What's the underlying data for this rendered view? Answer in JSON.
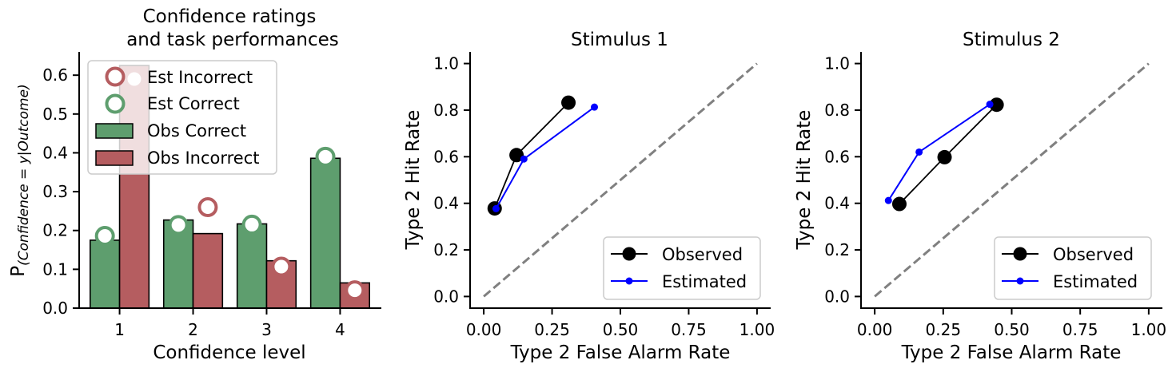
{
  "chart_data": [
    {
      "type": "bar",
      "title_lines": [
        "Confidence ratings",
        "and task performances"
      ],
      "xlabel": "Confidence level",
      "ylabel_main": "P",
      "ylabel_subscript": "(Confidence = y|Outcome)",
      "categories": [
        "1",
        "2",
        "3",
        "4"
      ],
      "xlim": [
        0.45,
        4.55
      ],
      "ylim": [
        0,
        0.66
      ],
      "yticks": [
        0.0,
        0.1,
        0.2,
        0.3,
        0.4,
        0.5,
        0.6
      ],
      "ytick_labels": [
        "0.0",
        "0.1",
        "0.2",
        "0.3",
        "0.4",
        "0.5",
        "0.6"
      ],
      "series": [
        {
          "name": "Obs Correct",
          "kind": "bar",
          "color": "#5e9e6e",
          "values": [
            0.175,
            0.227,
            0.217,
            0.386
          ]
        },
        {
          "name": "Obs Incorrect",
          "kind": "bar",
          "color": "#b55d60",
          "values": [
            0.625,
            0.192,
            0.122,
            0.065
          ]
        },
        {
          "name": "Est Correct",
          "kind": "marker",
          "color": "#5e9e6e",
          "values": [
            0.186,
            0.214,
            0.215,
            0.39
          ]
        },
        {
          "name": "Est Incorrect",
          "kind": "marker",
          "color": "#b55d60",
          "values": [
            0.59,
            0.26,
            0.107,
            0.046
          ]
        }
      ],
      "legend": {
        "placement": "upper-left",
        "entries": [
          "Est Incorrect",
          "Est Correct",
          "Obs Correct",
          "Obs Incorrect"
        ]
      }
    },
    {
      "type": "line",
      "title": "Stimulus 1",
      "xlabel": "Type 2 False Alarm Rate",
      "ylabel": "Type 2 Hit Rate",
      "xlim": [
        -0.05,
        1.05
      ],
      "ylim": [
        -0.05,
        1.05
      ],
      "xticks": [
        0.0,
        0.25,
        0.5,
        0.75,
        1.0
      ],
      "xtick_labels": [
        "0.00",
        "0.25",
        "0.50",
        "0.75",
        "1.00"
      ],
      "yticks": [
        0.0,
        0.2,
        0.4,
        0.6,
        0.8,
        1.0
      ],
      "ytick_labels": [
        "0.0",
        "0.2",
        "0.4",
        "0.6",
        "0.8",
        "1.0"
      ],
      "diagonal_color": "#808080",
      "series": [
        {
          "name": "Observed",
          "color": "#000000",
          "x": [
            0.04,
            0.12,
            0.31
          ],
          "y": [
            0.378,
            0.607,
            0.832
          ]
        },
        {
          "name": "Estimated",
          "color": "#0000ff",
          "x": [
            0.045,
            0.147,
            0.405
          ],
          "y": [
            0.377,
            0.59,
            0.813
          ]
        }
      ],
      "legend": {
        "placement": "lower-right",
        "entries": [
          "Observed",
          "Estimated"
        ]
      }
    },
    {
      "type": "line",
      "title": "Stimulus 2",
      "xlabel": "Type 2 False Alarm Rate",
      "ylabel": "Type 2 Hit Rate",
      "xlim": [
        -0.05,
        1.05
      ],
      "ylim": [
        -0.05,
        1.05
      ],
      "xticks": [
        0.0,
        0.25,
        0.5,
        0.75,
        1.0
      ],
      "xtick_labels": [
        "0.00",
        "0.25",
        "0.50",
        "0.75",
        "1.00"
      ],
      "yticks": [
        0.0,
        0.2,
        0.4,
        0.6,
        0.8,
        1.0
      ],
      "ytick_labels": [
        "0.0",
        "0.2",
        "0.4",
        "0.6",
        "0.8",
        "1.0"
      ],
      "diagonal_color": "#808080",
      "series": [
        {
          "name": "Observed",
          "color": "#000000",
          "x": [
            0.09,
            0.255,
            0.445
          ],
          "y": [
            0.397,
            0.598,
            0.823
          ]
        },
        {
          "name": "Estimated",
          "color": "#0000ff",
          "x": [
            0.05,
            0.162,
            0.42
          ],
          "y": [
            0.412,
            0.62,
            0.825
          ]
        }
      ],
      "legend": {
        "placement": "lower-right",
        "entries": [
          "Observed",
          "Estimated"
        ]
      }
    }
  ]
}
